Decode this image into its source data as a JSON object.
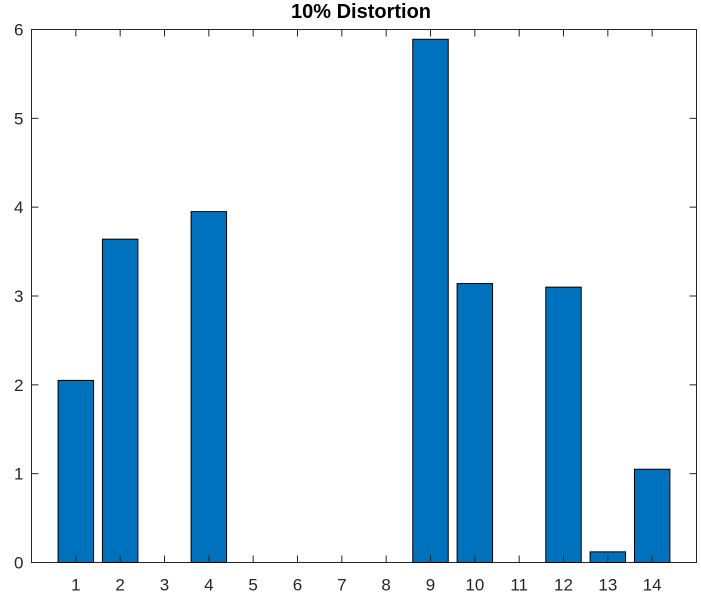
{
  "chart_data": {
    "type": "bar",
    "title": "10% Distortion",
    "xlabel": "",
    "ylabel": "",
    "categories": [
      "1",
      "2",
      "3",
      "4",
      "5",
      "6",
      "7",
      "8",
      "9",
      "10",
      "11",
      "12",
      "13",
      "14"
    ],
    "values": [
      2.05,
      3.64,
      0,
      3.95,
      0,
      0,
      0,
      0,
      5.89,
      3.14,
      0,
      3.1,
      0.12,
      1.05
    ],
    "ylim": [
      0,
      6
    ],
    "yticks": [
      0,
      1,
      2,
      3,
      4,
      5,
      6
    ],
    "xlim": [
      0,
      15
    ],
    "grid": false,
    "bar_color": "#0072BD"
  }
}
